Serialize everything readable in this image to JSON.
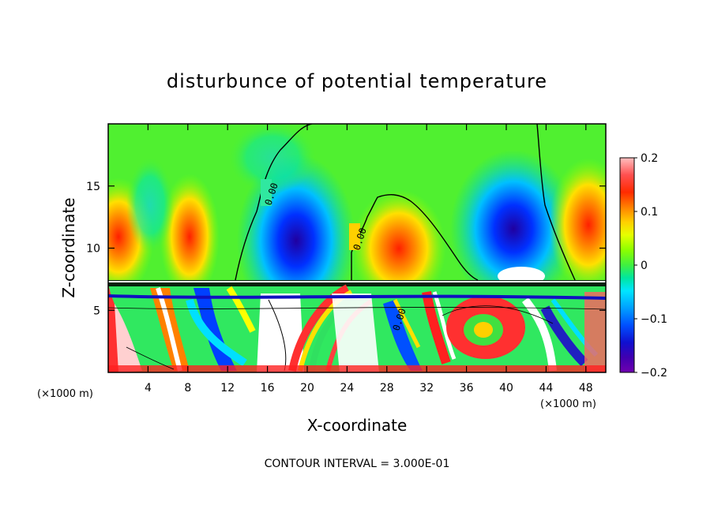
{
  "chart_data": {
    "type": "heatmap",
    "title": "disturbunce of potential temperature",
    "xlabel": "X-coordinate",
    "ylabel": "Z-coordinate",
    "x_unit": "(×1000 m)",
    "xlim": [
      0,
      50
    ],
    "ylim": [
      0,
      20
    ],
    "x_ticks": [
      4,
      8,
      12,
      16,
      20,
      24,
      28,
      32,
      36,
      40,
      44,
      48
    ],
    "y_ticks": [
      5,
      10,
      15
    ],
    "colorbar": {
      "range": [
        -0.2,
        0.2
      ],
      "tick_values": [
        0.2,
        0.1,
        0,
        -0.1,
        -0.2
      ],
      "tick_labels": [
        "0.2",
        "0.1",
        "0",
        "−0.1",
        "−0.2"
      ]
    },
    "contour_labels": [
      "0.00",
      "0.00",
      "0.00"
    ],
    "contour_interval_text": "CONTOUR INTERVAL = 3.000E-01"
  }
}
